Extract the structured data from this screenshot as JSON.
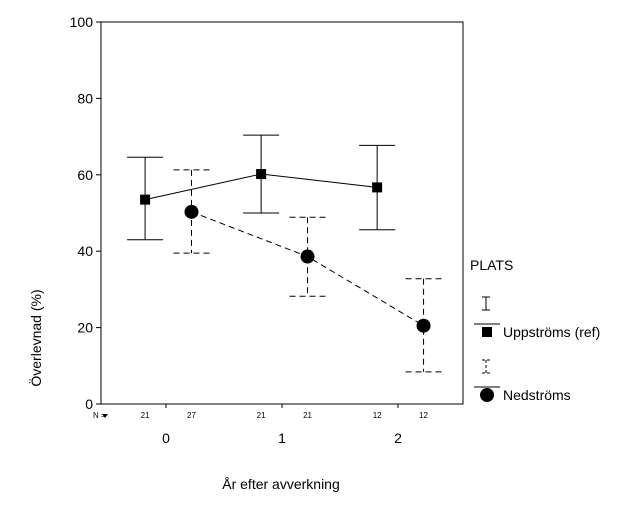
{
  "chart_data": {
    "type": "line",
    "title": "",
    "xlabel": "År efter avverkning",
    "ylabel": "Överlevnad (%)",
    "ylim": [
      0,
      100
    ],
    "yticks": [
      0,
      20,
      40,
      60,
      80,
      100
    ],
    "xlim": [
      -0.56,
      2.56
    ],
    "categories": [
      "0",
      "1",
      "2"
    ],
    "x": [
      0,
      1,
      2
    ],
    "n_label": "N =",
    "legend": {
      "title": "PLATS",
      "position": "right"
    },
    "grid": false,
    "series": [
      {
        "name": "Uppströms (ref)",
        "marker": "square",
        "line_style": "solid",
        "x_offset": -0.18,
        "values": [
          53.5,
          60.2,
          56.7
        ],
        "ci_low": [
          43,
          50,
          45.6
        ],
        "ci_high": [
          64.6,
          70.4,
          67.7
        ],
        "n": [
          "21",
          "21",
          "12"
        ]
      },
      {
        "name": "Nedströms",
        "marker": "circle",
        "line_style": "dashed",
        "x_offset": 0.22,
        "values": [
          50.3,
          38.6,
          20.5
        ],
        "ci_low": [
          39.5,
          28.2,
          8.4
        ],
        "ci_high": [
          61.3,
          48.9,
          32.8
        ],
        "n": [
          "27",
          "21",
          "12"
        ]
      }
    ]
  }
}
